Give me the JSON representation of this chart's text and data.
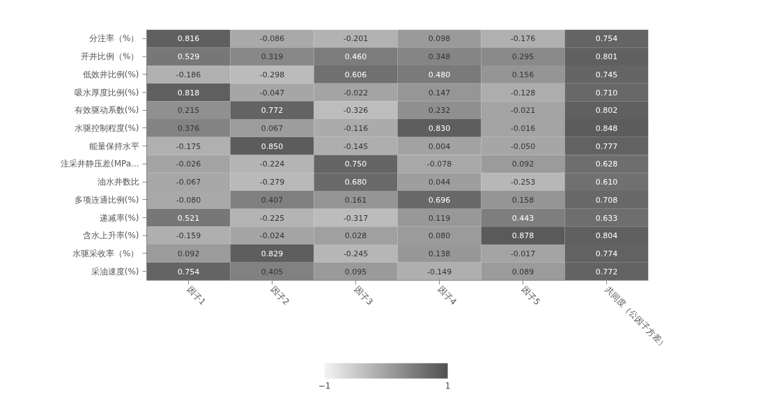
{
  "chart_data": {
    "type": "heatmap",
    "categories": [
      "因子1",
      "因子2",
      "因子3",
      "因子4",
      "因子5",
      "共同度（公因子方差）"
    ],
    "y_categories": [
      "分注率（%）",
      "开井比例（%）",
      "低效井比例(%)",
      "吸水厚度比例(%)",
      "有效驱动系数(%)",
      "水驱控制程度(%)",
      "能量保持水平",
      "注采井静压差(MPa...",
      "油水井数比",
      "多项连通比例(%)",
      "递减率(%)",
      "含水上升率(%)",
      "水驱采收率（%）",
      "采油速度(%)"
    ],
    "cells": [
      [
        0.816,
        -0.086,
        -0.201,
        0.098,
        -0.176,
        0.754
      ],
      [
        0.529,
        0.319,
        0.46,
        0.348,
        0.295,
        0.801
      ],
      [
        -0.186,
        -0.298,
        0.606,
        0.48,
        0.156,
        0.745
      ],
      [
        0.818,
        -0.047,
        -0.022,
        0.147,
        -0.128,
        0.71
      ],
      [
        0.215,
        0.772,
        -0.326,
        0.232,
        -0.021,
        0.802
      ],
      [
        0.376,
        0.067,
        -0.116,
        0.83,
        -0.016,
        0.848
      ],
      [
        -0.175,
        0.85,
        -0.145,
        0.004,
        -0.05,
        0.777
      ],
      [
        -0.026,
        -0.224,
        0.75,
        -0.078,
        0.092,
        0.628
      ],
      [
        -0.067,
        -0.279,
        0.68,
        0.044,
        -0.253,
        0.61
      ],
      [
        -0.08,
        0.407,
        0.161,
        0.696,
        0.158,
        0.708
      ],
      [
        0.521,
        -0.225,
        -0.317,
        0.119,
        0.443,
        0.633
      ],
      [
        -0.159,
        -0.024,
        0.028,
        0.08,
        0.878,
        0.804
      ],
      [
        0.092,
        0.829,
        -0.245,
        0.138,
        -0.017,
        0.774
      ],
      [
        0.754,
        0.405,
        0.095,
        -0.149,
        0.089,
        0.772
      ]
    ],
    "cell_labels": [
      [
        "0.816",
        "-0.086",
        "-0.201",
        "0.098",
        "-0.176",
        "0.754"
      ],
      [
        "0.529",
        "0.319",
        "0.460",
        "0.348",
        "0.295",
        "0.801"
      ],
      [
        "-0.186",
        "-0.298",
        "0.606",
        "0.480",
        "0.156",
        "0.745"
      ],
      [
        "0.818",
        "-0.047",
        "-0.022",
        "0.147",
        "-0.128",
        "0.710"
      ],
      [
        "0.215",
        "0.772",
        "-0.326",
        "0.232",
        "-0.021",
        "0.802"
      ],
      [
        "0.376",
        "0.067",
        "-0.116",
        "0.830",
        "-0.016",
        "0.848"
      ],
      [
        "-0.175",
        "0.850",
        "-0.145",
        "0.004",
        "-0.050",
        "0.777"
      ],
      [
        "-0.026",
        "-0.224",
        "0.750",
        "-0.078",
        "0.092",
        "0.628"
      ],
      [
        "-0.067",
        "-0.279",
        "0.680",
        "0.044",
        "-0.253",
        "0.610"
      ],
      [
        "-0.080",
        "0.407",
        "0.161",
        "0.696",
        "0.158",
        "0.708"
      ],
      [
        "0.521",
        "-0.225",
        "-0.317",
        "0.119",
        "0.443",
        "0.633"
      ],
      [
        "-0.159",
        "-0.024",
        "0.028",
        "0.080",
        "0.878",
        "0.804"
      ],
      [
        "0.092",
        "0.829",
        "-0.245",
        "0.138",
        "-0.017",
        "0.774"
      ],
      [
        "0.754",
        "0.405",
        "0.095",
        "-0.149",
        "0.089",
        "0.772"
      ]
    ],
    "clim": [
      -1,
      1
    ],
    "cticks": [
      -1,
      1
    ]
  }
}
